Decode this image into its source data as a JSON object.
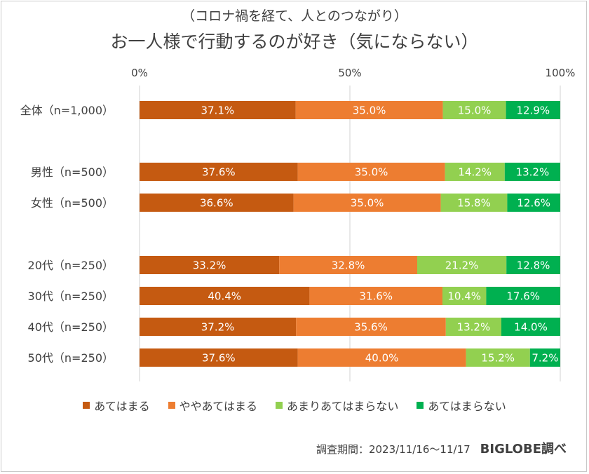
{
  "subtitle": "（コロナ禍を経て、人とのつながり）",
  "title": "お一人様で行動するのが好き（気にならない）",
  "footer": {
    "survey_period": "調査期間：2023/11/16〜11/17",
    "source": "BIGLOBE調べ"
  },
  "colors": {
    "series": [
      "#c55a11",
      "#ed7d31",
      "#92d050",
      "#00b050"
    ],
    "gridline": "#d0d0d0",
    "label_on_bar": "#ffffff"
  },
  "chart_data": {
    "type": "bar",
    "orientation": "horizontal",
    "stacked": "100%",
    "x_ticks": [
      "0%",
      "50%",
      "100%"
    ],
    "xlim": [
      0,
      100
    ],
    "legend_position": "bottom",
    "categories": [
      "全体（n=1,000）",
      "男性（n=500）",
      "女性（n=500）",
      "20代（n=250）",
      "30代（n=250）",
      "40代（n=250）",
      "50代（n=250）"
    ],
    "series": [
      {
        "name": "あてはまる",
        "values": [
          37.1,
          37.6,
          36.6,
          33.2,
          40.4,
          37.2,
          37.6
        ]
      },
      {
        "name": "ややあてはまる",
        "values": [
          35.0,
          35.0,
          35.0,
          32.8,
          31.6,
          35.6,
          40.0
        ]
      },
      {
        "name": "あまりあてはまらない",
        "values": [
          15.0,
          14.2,
          15.8,
          21.2,
          10.4,
          13.2,
          15.2
        ]
      },
      {
        "name": "あてはまらない",
        "values": [
          12.9,
          13.2,
          12.6,
          12.8,
          17.6,
          14.0,
          7.2
        ]
      }
    ],
    "data_labels": [
      [
        "37.1%",
        "37.6%",
        "36.6%",
        "33.2%",
        "40.4%",
        "37.2%",
        "37.6%"
      ],
      [
        "35.0%",
        "35.0%",
        "35.0%",
        "32.8%",
        "31.6%",
        "35.6%",
        "40.0%"
      ],
      [
        "15.0%",
        "14.2%",
        "15.8%",
        "21.2%",
        "10.4%",
        "13.2%",
        "15.2%"
      ],
      [
        "12.9%",
        "13.2%",
        "12.6%",
        "12.8%",
        "17.6%",
        "14.0%",
        "7.2%"
      ]
    ]
  }
}
